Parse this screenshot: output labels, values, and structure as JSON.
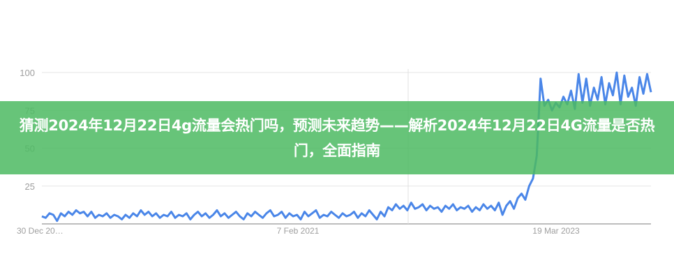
{
  "title": "猜测2024年12月22日4g流量会热门吗，预测未来趋势——解析2024年12月22日4G流量是否热门，全面指南",
  "chart_data": {
    "type": "line",
    "ylim": [
      0,
      100
    ],
    "y_ticks": [
      "25",
      "50",
      "75",
      "100"
    ],
    "x_ticks": [
      "30 Dec 20…",
      "7 Feb 2021",
      "19 Mar 2023"
    ],
    "grid": true,
    "line_color": "#4a86e8",
    "values": [
      5,
      4,
      7,
      6,
      2,
      7,
      5,
      8,
      6,
      9,
      7,
      8,
      5,
      8,
      4,
      6,
      5,
      7,
      4,
      6,
      5,
      3,
      6,
      4,
      7,
      5,
      9,
      6,
      8,
      5,
      7,
      4,
      6,
      5,
      8,
      4,
      6,
      5,
      7,
      3,
      6,
      8,
      5,
      7,
      4,
      6,
      9,
      5,
      7,
      4,
      6,
      8,
      5,
      3,
      7,
      5,
      8,
      6,
      4,
      7,
      9,
      5,
      6,
      8,
      4,
      7,
      5,
      6,
      3,
      8,
      5,
      7,
      9,
      4,
      6,
      5,
      8,
      6,
      4,
      7,
      5,
      6,
      8,
      4,
      7,
      5,
      9,
      6,
      3,
      8,
      5,
      11,
      9,
      13,
      10,
      12,
      9,
      14,
      10,
      11,
      13,
      9,
      12,
      10,
      11,
      8,
      12,
      10,
      13,
      9,
      11,
      10,
      12,
      8,
      11,
      9,
      13,
      10,
      12,
      9,
      14,
      6,
      12,
      15,
      10,
      17,
      20,
      16,
      25,
      30,
      45,
      96,
      78,
      82,
      75,
      80,
      77,
      84,
      79,
      88,
      76,
      99,
      80,
      96,
      78,
      90,
      82,
      97,
      79,
      93,
      85,
      100,
      79,
      98,
      84,
      90,
      78,
      97,
      86,
      99,
      87
    ]
  }
}
